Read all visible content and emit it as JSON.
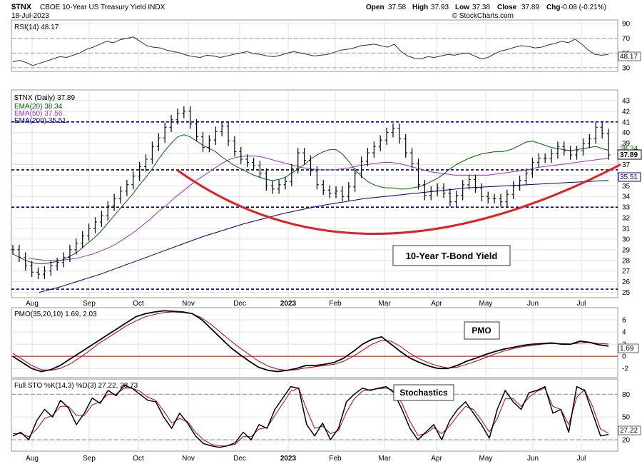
{
  "header": {
    "symbol": "$TNX",
    "name": "CBOE 10-Year US Treasury Yield INDX",
    "date": "18-Jul-2023",
    "open_label": "Open",
    "open": "37.58",
    "high_label": "High",
    "high": "37.93",
    "low_label": "Low",
    "low": "37.38",
    "close_label": "Close",
    "close": "37.89",
    "chg_label": "Chg",
    "chg": "-0.08 (-0.21%)",
    "watermark": "© StockCharts.com"
  },
  "colors": {
    "price": "#000000",
    "ema20": "#006400",
    "ema50": "#9932cc",
    "ema200": "#00008b",
    "cup": "#e02020",
    "dash": "#000080",
    "pmo": "#000000",
    "pmo_signal": "#c00000",
    "sto_k": "#000000",
    "sto_d": "#c00000",
    "panel_line": "#b0b0b0",
    "zero": "#c00000"
  },
  "chart_data": [
    {
      "type": "line",
      "panel": "rsi",
      "legend": "RSI(14) 48.17",
      "label_last": "48.17",
      "ylim": [
        25,
        95
      ],
      "yticks": [
        30,
        50,
        70,
        90
      ],
      "reference_lines": [
        70,
        50,
        30
      ],
      "values": [
        38,
        40,
        37,
        33,
        36,
        39,
        42,
        45,
        44,
        47,
        50,
        55,
        58,
        62,
        66,
        64,
        68,
        70,
        72,
        66,
        60,
        58,
        57,
        54,
        52,
        50,
        47,
        45,
        44,
        47,
        46,
        44,
        46,
        48,
        50,
        52,
        49,
        48,
        46,
        45,
        47,
        50,
        52,
        50,
        48,
        46,
        47,
        48,
        51,
        54,
        55,
        57,
        60,
        61,
        62,
        60,
        58,
        62,
        52,
        46,
        43,
        42,
        45,
        44,
        46,
        48,
        47,
        49,
        50,
        46,
        42,
        44,
        49,
        53,
        55,
        58,
        60,
        59,
        57,
        58,
        61,
        63,
        66,
        64,
        69,
        62,
        54,
        48,
        47,
        48
      ]
    },
    {
      "type": "line",
      "panel": "price",
      "legend": {
        "price": "$TNX (Daily) 37.89",
        "ema20": "EMA(20) 38.34",
        "ema50": "EMA(50) 37.56",
        "ema200": "EMA(200) 35.51"
      },
      "ylim": [
        24.5,
        44
      ],
      "yticks": [
        25,
        26,
        27,
        28,
        29,
        30,
        31,
        32,
        33,
        34,
        35,
        36,
        37,
        38,
        39,
        40,
        41,
        42,
        43
      ],
      "price_labels": [
        "38.34",
        "37.89",
        "35.51"
      ],
      "x_labels": [
        "Aug",
        "Sep",
        "Oct",
        "Nov",
        "Dec",
        "2023",
        "Feb",
        "Mar",
        "Apr",
        "May",
        "Jun",
        "Jul"
      ],
      "annotation": "10-Year T-Bond Yield",
      "horizontal_lines": [
        41,
        36.5,
        33,
        25.3
      ],
      "cup_curve": [
        {
          "date": "Oct 28 2022",
          "y": 36.5
        },
        {
          "date": "Feb 28 2023",
          "y": 30.5
        },
        {
          "date": "Jul 18 2023",
          "y": 37
        }
      ],
      "series": [
        {
          "name": "$TNX",
          "values": [
            29.0,
            28.3,
            27.5,
            26.9,
            26.7,
            27.0,
            27.5,
            27.8,
            28.3,
            29.0,
            29.6,
            30.3,
            31.0,
            31.6,
            32.2,
            33.1,
            33.8,
            34.5,
            35.1,
            35.9,
            36.8,
            37.5,
            38.7,
            39.5,
            40.5,
            41.2,
            41.8,
            42.0,
            40.8,
            39.6,
            38.6,
            39.3,
            40.1,
            40.6,
            39.2,
            38.2,
            37.5,
            37.2,
            36.9,
            36.2,
            35.0,
            34.7,
            35.1,
            35.4,
            36.6,
            38.1,
            37.4,
            36.4,
            35.1,
            34.6,
            34.3,
            34.5,
            34.0,
            34.9,
            36.2,
            37.3,
            38.1,
            38.7,
            39.3,
            40.0,
            40.4,
            39.4,
            38.1,
            37.1,
            35.1,
            34.1,
            34.5,
            34.8,
            34.3,
            33.5,
            34.1,
            35.1,
            35.6,
            34.8,
            34.0,
            33.8,
            33.8,
            33.5,
            34.2,
            35.0,
            35.5,
            36.2,
            37.2,
            37.6,
            37.6,
            38.0,
            38.7,
            38.3,
            37.9,
            38.3,
            39.0,
            39.4,
            40.5,
            39.9,
            37.9
          ]
        },
        {
          "name": "EMA(20)",
          "values": [
            28.6,
            28.3,
            28.0,
            27.8,
            27.7,
            27.7,
            27.8,
            27.9,
            28.1,
            28.4,
            28.7,
            29.2,
            29.7,
            30.2,
            30.8,
            31.5,
            32.2,
            32.9,
            33.6,
            34.3,
            35.1,
            35.8,
            36.6,
            37.5,
            38.3,
            39.0,
            39.6,
            39.8,
            39.6,
            39.2,
            38.8,
            38.5,
            38.2,
            37.7,
            37.3,
            36.9,
            36.6,
            36.3,
            36.0,
            35.8,
            35.6,
            35.5,
            35.6,
            35.8,
            36.2,
            36.6,
            37.0,
            37.5,
            37.9,
            38.2,
            38.4,
            38.4,
            38.0,
            37.3,
            36.5,
            35.9,
            35.4,
            35.1,
            34.9,
            34.8,
            34.8,
            34.7,
            34.7,
            34.8,
            34.9,
            35.1,
            35.4,
            35.7,
            36.1,
            36.6,
            37.0,
            37.3,
            37.6,
            37.8,
            38.0,
            38.1,
            38.2,
            38.2,
            38.3,
            38.5,
            38.8,
            39.1,
            39.2,
            39.0,
            38.8,
            38.6,
            38.5,
            38.4,
            38.3,
            38.4,
            38.5,
            38.6,
            38.7,
            38.5,
            38.34
          ]
        },
        {
          "name": "EMA(50)",
          "values": [
            28.2,
            28.1,
            28.0,
            28.0,
            28.0,
            28.1,
            28.2,
            28.4,
            28.6,
            28.9,
            29.2,
            29.6,
            30.1,
            30.6,
            31.2,
            31.8,
            32.5,
            33.1,
            33.8,
            34.4,
            35.0,
            35.6,
            36.1,
            36.6,
            37.1,
            37.5,
            37.7,
            37.8,
            37.8,
            37.7,
            37.5,
            37.3,
            37.1,
            36.9,
            36.7,
            36.6,
            36.5,
            36.5,
            36.5,
            36.6,
            36.7,
            36.9,
            37.0,
            37.1,
            37.2,
            37.2,
            37.1,
            36.9,
            36.7,
            36.5,
            36.3,
            36.2,
            36.1,
            36.0,
            36.0,
            36.0,
            36.0,
            36.0,
            36.1,
            36.2,
            36.3,
            36.4,
            36.5,
            36.7,
            36.8,
            36.9,
            37.0,
            37.1,
            37.2,
            37.3,
            37.4,
            37.5,
            37.56
          ]
        },
        {
          "name": "EMA(200)",
          "values": [
            25.0,
            25.5,
            26.1,
            26.7,
            27.4,
            28.1,
            28.8,
            29.5,
            30.2,
            30.8,
            31.4,
            31.9,
            32.4,
            32.8,
            33.2,
            33.5,
            33.8,
            34.0,
            34.2,
            34.4,
            34.6,
            34.8,
            34.9,
            35.0,
            35.1,
            35.2,
            35.3,
            35.4,
            35.51
          ]
        }
      ]
    },
    {
      "type": "line",
      "panel": "pmo",
      "legend": "PMO(35,20,10) 1.69, 2.03",
      "legend_value1": "1.69",
      "legend_value2": "2.03",
      "label_last": "1.69",
      "annotation": "PMO",
      "ylim": [
        -3.5,
        8
      ],
      "yticks": [
        -2,
        0,
        2,
        4,
        6
      ],
      "series": [
        {
          "name": "PMO",
          "values": [
            0.0,
            -1.0,
            -2.0,
            -2.5,
            -2.2,
            -1.5,
            -0.5,
            0.5,
            1.5,
            2.5,
            3.5,
            4.5,
            5.5,
            6.5,
            7.0,
            7.3,
            7.5,
            7.4,
            7.3,
            7.0,
            6.0,
            4.5,
            3.0,
            1.5,
            0.3,
            -0.8,
            -1.8,
            -2.3,
            -2.5,
            -2.3,
            -2.0,
            -1.5,
            -1.5,
            -1.3,
            -1.0,
            -0.3,
            0.8,
            2.0,
            2.8,
            3.2,
            2.0,
            0.8,
            -0.3,
            -1.0,
            -1.6,
            -2.0,
            -2.0,
            -1.5,
            -0.8,
            -0.3,
            0.3,
            0.8,
            1.2,
            1.5,
            1.8,
            2.0,
            2.1,
            2.2,
            2.0,
            2.0,
            2.5,
            2.3,
            1.9,
            1.69
          ]
        },
        {
          "name": "Signal",
          "values": [
            0.5,
            -0.5,
            -1.5,
            -2.2,
            -2.3,
            -2.0,
            -1.3,
            -0.3,
            0.8,
            2.0,
            3.0,
            4.0,
            5.0,
            5.8,
            6.5,
            6.9,
            7.2,
            7.3,
            7.2,
            7.0,
            6.3,
            5.2,
            3.9,
            2.6,
            1.4,
            0.3,
            -0.8,
            -1.6,
            -2.1,
            -2.3,
            -2.2,
            -1.9,
            -1.7,
            -1.5,
            -1.3,
            -0.8,
            0.0,
            1.0,
            2.0,
            2.6,
            2.5,
            1.6,
            0.5,
            -0.4,
            -1.1,
            -1.6,
            -1.9,
            -1.8,
            -1.3,
            -0.8,
            -0.2,
            0.4,
            0.9,
            1.3,
            1.6,
            1.8,
            2.0,
            2.1,
            2.1,
            2.0,
            2.2,
            2.3,
            2.1,
            2.03
          ]
        }
      ]
    },
    {
      "type": "line",
      "panel": "stochastics",
      "legend": "Full STO %K(14,3) %D(3) 27.22, 28.73",
      "legend_value1": "27.22",
      "legend_value2": "28.73",
      "label_last": "27.22",
      "annotation": "Stochastics",
      "ylim": [
        5,
        100
      ],
      "yticks": [
        20,
        50,
        80
      ],
      "reference_lines": [
        80,
        20
      ],
      "series": [
        {
          "name": "%K",
          "values": [
            25,
            30,
            20,
            45,
            60,
            50,
            72,
            62,
            40,
            55,
            75,
            68,
            85,
            78,
            92,
            88,
            80,
            72,
            70,
            50,
            35,
            55,
            42,
            25,
            15,
            12,
            10,
            12,
            16,
            30,
            20,
            40,
            35,
            60,
            75,
            90,
            88,
            40,
            25,
            42,
            20,
            35,
            70,
            80,
            88,
            85,
            88,
            90,
            82,
            60,
            35,
            20,
            30,
            40,
            20,
            45,
            60,
            70,
            55,
            40,
            22,
            60,
            85,
            70,
            60,
            82,
            85,
            90,
            55,
            60,
            30,
            90,
            85,
            55,
            25,
            27
          ]
        },
        {
          "name": "%D",
          "values": [
            28,
            28,
            24,
            34,
            48,
            52,
            64,
            64,
            52,
            52,
            66,
            70,
            80,
            80,
            88,
            88,
            84,
            76,
            72,
            58,
            42,
            48,
            44,
            30,
            20,
            14,
            12,
            12,
            14,
            24,
            24,
            34,
            36,
            52,
            68,
            84,
            88,
            60,
            35,
            38,
            28,
            32,
            56,
            74,
            84,
            86,
            87,
            88,
            85,
            68,
            44,
            26,
            28,
            36,
            28,
            38,
            52,
            64,
            60,
            46,
            30,
            48,
            74,
            74,
            64,
            76,
            84,
            88,
            64,
            60,
            40,
            76,
            86,
            64,
            34,
            28.73
          ]
        }
      ]
    }
  ]
}
